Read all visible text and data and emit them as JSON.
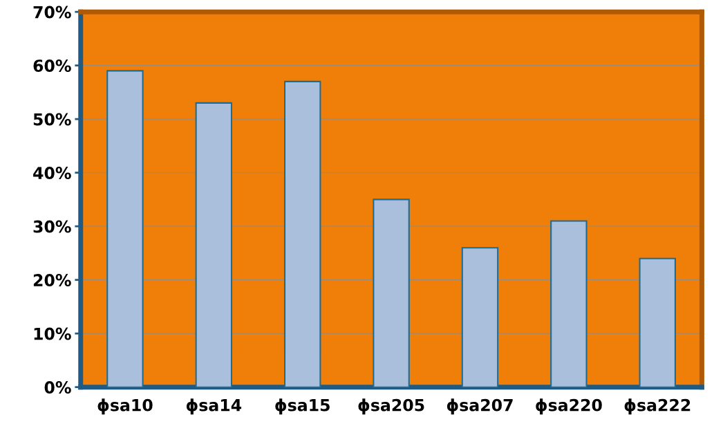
{
  "chart_data": {
    "type": "bar",
    "categories": [
      "ϕsa10",
      "ϕsa14",
      "ϕsa15",
      "ϕsa205",
      "ϕsa207",
      "ϕsa220",
      "ϕsa222"
    ],
    "values": [
      59,
      53,
      57,
      35,
      26,
      31,
      24
    ],
    "color": "#a9bfdc",
    "ylim": [
      0,
      70
    ],
    "yticks": [
      {
        "value": 0,
        "label": "0%"
      },
      {
        "value": 10,
        "label": "10%"
      },
      {
        "value": 20,
        "label": "20%"
      },
      {
        "value": 30,
        "label": "30%"
      },
      {
        "value": 40,
        "label": "40%"
      },
      {
        "value": 50,
        "label": "50%"
      },
      {
        "value": 60,
        "label": "60%"
      },
      {
        "value": 70,
        "label": "70%"
      }
    ],
    "grid": "y"
  }
}
